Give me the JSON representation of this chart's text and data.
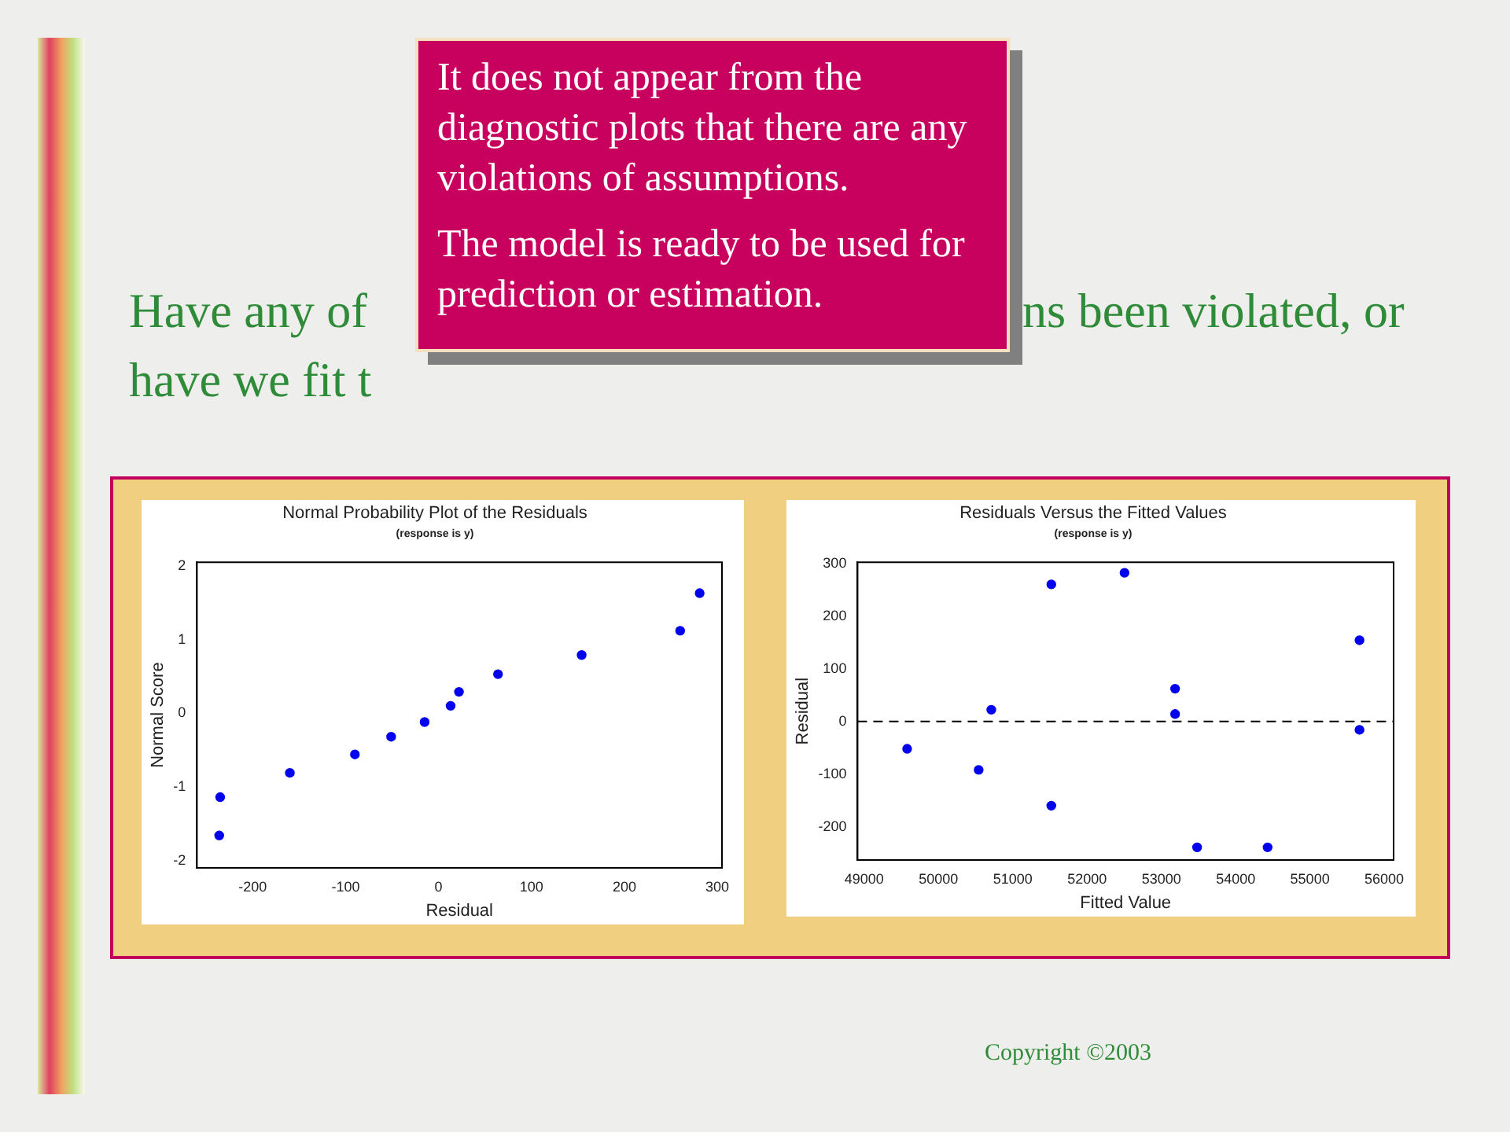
{
  "chart_data": [
    {
      "type": "scatter",
      "title": "Normal Probability Plot of the Residuals",
      "subtitle": "(response is y)",
      "xlabel": "Residual",
      "ylabel": "Normal Score",
      "marker": "circle",
      "grid": false,
      "legend": false,
      "x": [
        -236,
        -235,
        -160,
        -90,
        -51,
        -15,
        13,
        22,
        64,
        154,
        260,
        281
      ],
      "values": [
        -1.66,
        -1.14,
        -0.81,
        -0.56,
        -0.32,
        -0.12,
        0.1,
        0.29,
        0.53,
        0.79,
        1.12,
        1.63
      ],
      "color": "#0000ee",
      "xlim": [
        -260,
        305
      ],
      "xticks": [
        -200,
        -100,
        0,
        100,
        200,
        300
      ],
      "ylim": [
        -2.1,
        2.05
      ],
      "yticks": [
        -2,
        -1,
        0,
        1,
        2
      ]
    },
    {
      "type": "scatter",
      "title": "Residuals Versus the Fitted Values",
      "subtitle": "(response is y)",
      "xlabel": "Fitted Value",
      "ylabel": "Residual",
      "marker": "circle",
      "grid": false,
      "legend": false,
      "x": [
        49578,
        50541,
        50711,
        51519,
        51519,
        52504,
        53185,
        53185,
        53481,
        54430,
        55667,
        55667
      ],
      "values": [
        -52,
        -92,
        22,
        260,
        -160,
        282,
        62,
        14,
        -239,
        -239,
        154,
        -16
      ],
      "color": "#0000ee",
      "xlim": [
        48911,
        56126
      ],
      "xticks": [
        49000,
        50000,
        51000,
        52000,
        53000,
        54000,
        55000,
        56000
      ],
      "ylim": [
        -263,
        302
      ],
      "yticks": [
        -200,
        -100,
        0,
        100,
        200,
        300
      ],
      "ref_lines": [
        {
          "axis": "y",
          "value": 0,
          "line_style": "dashed",
          "color": "#000000"
        }
      ]
    },
    {
      "type": "other",
      "annotations": [
        "It does not appear from the diagnostic plots that there are any violations of assumptions.",
        "The model is ready to be used for prediction or estimation.",
        "Have any of",
        "ns been violated, or",
        "have we fit t",
        "Copyright ©2003"
      ]
    }
  ]
}
